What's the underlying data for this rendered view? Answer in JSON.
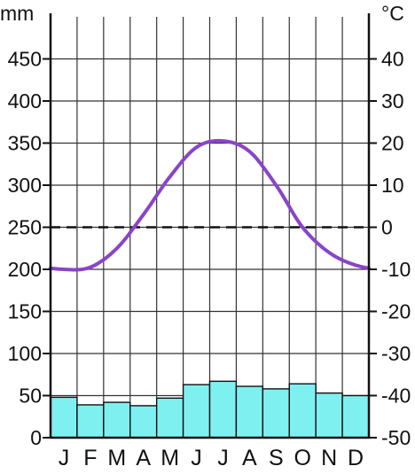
{
  "chart_data": {
    "type": "bar",
    "left_axis_unit": "mm",
    "right_axis_unit": "°C",
    "categories": [
      "J",
      "F",
      "M",
      "A",
      "M",
      "J",
      "J",
      "A",
      "S",
      "O",
      "N",
      "D"
    ],
    "precipitation": [
      48,
      39,
      42,
      38,
      47,
      63,
      67,
      61,
      58,
      64,
      53,
      50
    ],
    "temperature": [
      -10,
      -9.5,
      -5,
      3,
      12,
      19,
      20.5,
      18,
      10,
      0,
      -6,
      -9
    ],
    "left_ticks": [
      "0",
      "50",
      "100",
      "150",
      "200",
      "250",
      "300",
      "350",
      "400",
      "450"
    ],
    "right_ticks": [
      "-50",
      "-40",
      "-30",
      "-20",
      "-10",
      "0",
      "10",
      "20",
      "30",
      "40"
    ],
    "left_ylim": [
      0,
      500
    ],
    "right_ylim": [
      -50,
      50
    ],
    "reference_line": 0,
    "bar_color": "#7ff0f0",
    "line_color": "#8a44c8",
    "grid": true
  }
}
